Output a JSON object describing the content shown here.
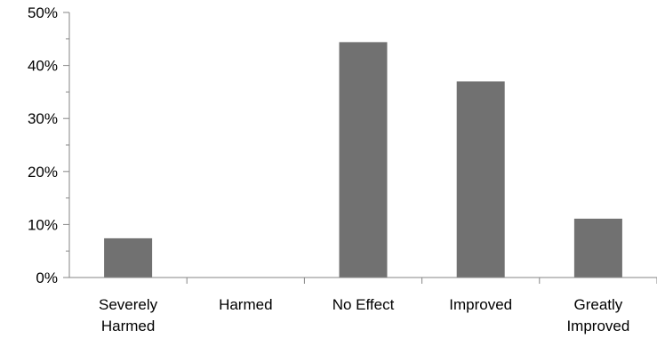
{
  "chart_data": {
    "type": "bar",
    "title": "",
    "xlabel": "",
    "ylabel": "",
    "categories": [
      [
        "Severely",
        "Harmed"
      ],
      [
        "Harmed"
      ],
      [
        "No Effect"
      ],
      [
        "Improved"
      ],
      [
        "Greatly",
        "Improved"
      ]
    ],
    "values": [
      7.4,
      0,
      44.4,
      37.0,
      11.1
    ],
    "ylim": [
      0,
      50
    ],
    "y_major_step": 10,
    "y_minor_step": 5,
    "y_tick_format": "percent",
    "y_tick_labels": [
      "0%",
      "10%",
      "20%",
      "30%",
      "40%",
      "50%"
    ],
    "grid": false,
    "legend": "none",
    "bar_color": "#717171",
    "axis_color": "#868686"
  }
}
